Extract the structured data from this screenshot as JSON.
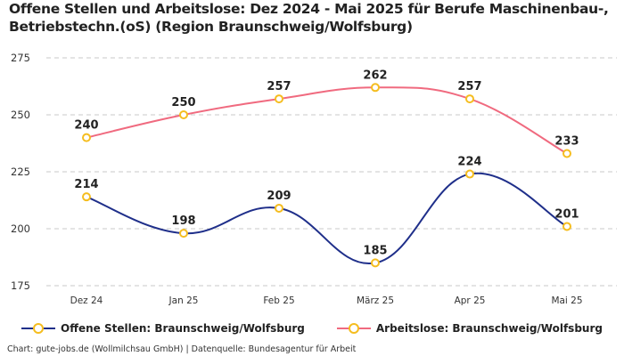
{
  "title": "Offene Stellen und Arbeitslose: Dez 2024 - Mai 2025 für Berufe Maschinenbau-, Betriebstechn.(oS) (Region Braunschweig/Wolfsburg)",
  "credit": "Chart: gute-jobs.de (Wollmilchsau GmbH) | Datenquelle: Bundesagentur für Arbeit",
  "legend": [
    {
      "label": "Offene Stellen: Braunschweig/Wolfsburg",
      "color": "#1f2f8a"
    },
    {
      "label": "Arbeitslose: Braunschweig/Wolfsburg",
      "color": "#f06a7f"
    }
  ],
  "chart_data": {
    "type": "line",
    "title": "Offene Stellen und Arbeitslose: Dez 2024 - Mai 2025 für Berufe Maschinenbau-, Betriebstechn.(oS) (Region Braunschweig/Wolfsburg)",
    "xlabel": "",
    "ylabel": "",
    "categories": [
      "Dez 24",
      "Jan 25",
      "Feb 25",
      "März 25",
      "Apr 25",
      "Mai 25"
    ],
    "ylim": [
      175,
      275
    ],
    "yticks": [
      175,
      200,
      225,
      250,
      275
    ],
    "grid": true,
    "legend_position": "bottom",
    "marker_color": "#f5bd1f",
    "series": [
      {
        "name": "Offene Stellen: Braunschweig/Wolfsburg",
        "color": "#1f2f8a",
        "values": [
          214,
          198,
          209,
          185,
          224,
          201
        ]
      },
      {
        "name": "Arbeitslose: Braunschweig/Wolfsburg",
        "color": "#f06a7f",
        "values": [
          240,
          250,
          257,
          262,
          257,
          233
        ]
      }
    ]
  }
}
